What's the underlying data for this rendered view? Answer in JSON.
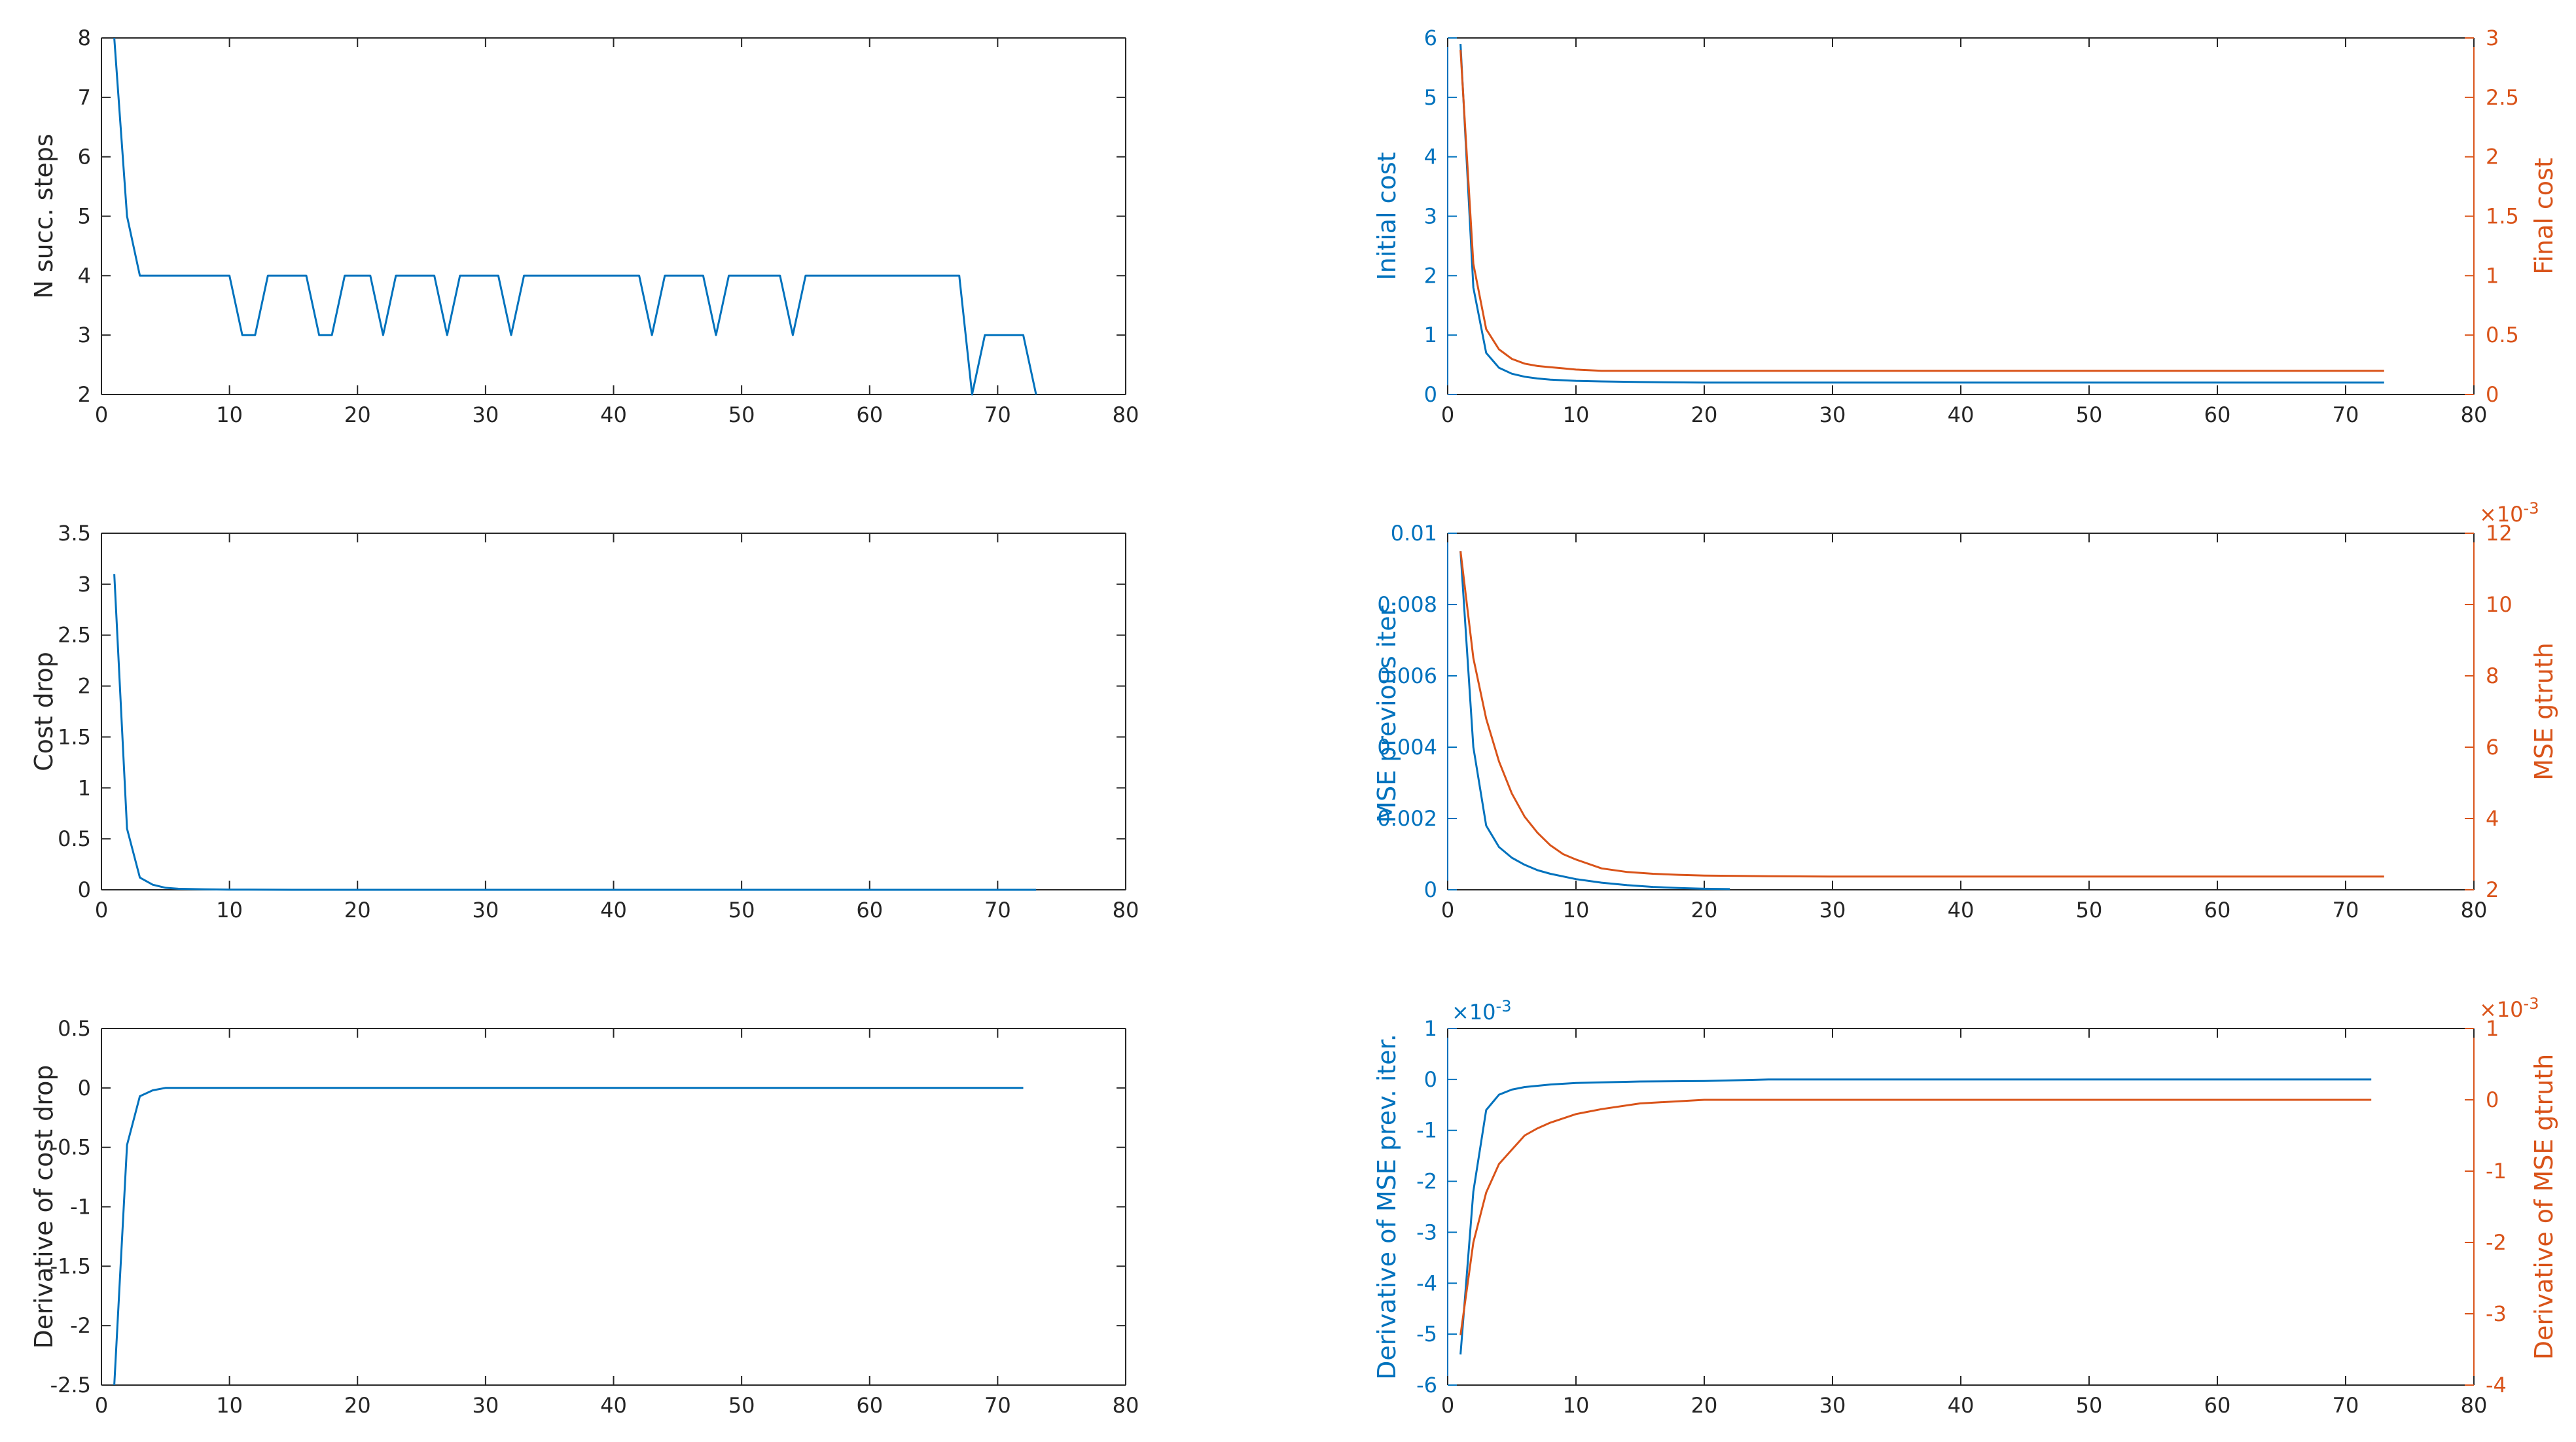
{
  "colors": {
    "blue": "#0072BD",
    "orange": "#D95319",
    "axis": "#262626",
    "grid_tick": "#262626"
  },
  "chart_data": [
    {
      "id": "n-succ-steps",
      "type": "line",
      "xlim": [
        0,
        80
      ],
      "xticks": [
        0,
        10,
        20,
        30,
        40,
        50,
        60,
        70,
        80
      ],
      "left_axis": {
        "label": "N succ. steps",
        "ylim": [
          2,
          8
        ],
        "ticks": [
          2,
          3,
          4,
          5,
          6,
          7,
          8
        ],
        "tick_labels": [
          "2",
          "3",
          "4",
          "5",
          "6",
          "7",
          "8"
        ]
      },
      "series": [
        {
          "axis": "left",
          "color_key": "blue",
          "x": [
            1,
            2,
            3,
            4,
            5,
            6,
            7,
            8,
            9,
            10,
            11,
            12,
            13,
            14,
            15,
            16,
            17,
            18,
            19,
            20,
            21,
            22,
            23,
            24,
            25,
            26,
            27,
            28,
            29,
            30,
            31,
            32,
            33,
            34,
            35,
            36,
            37,
            38,
            39,
            40,
            41,
            42,
            43,
            44,
            45,
            46,
            47,
            48,
            49,
            50,
            51,
            52,
            53,
            54,
            55,
            56,
            57,
            58,
            59,
            60,
            61,
            62,
            63,
            64,
            65,
            66,
            67,
            68,
            69,
            70,
            71,
            72,
            73
          ],
          "y": [
            8,
            5,
            4,
            4,
            4,
            4,
            4,
            4,
            4,
            4,
            3,
            3,
            4,
            4,
            4,
            4,
            3,
            3,
            4,
            4,
            4,
            3,
            4,
            4,
            4,
            4,
            3,
            4,
            4,
            4,
            4,
            3,
            4,
            4,
            4,
            4,
            4,
            4,
            4,
            4,
            4,
            4,
            3,
            4,
            4,
            4,
            4,
            3,
            4,
            4,
            4,
            4,
            4,
            3,
            4,
            4,
            4,
            4,
            4,
            4,
            4,
            4,
            4,
            4,
            4,
            4,
            4,
            2,
            3,
            3,
            3,
            3,
            2
          ]
        }
      ]
    },
    {
      "id": "cost-drop",
      "type": "line",
      "xlim": [
        0,
        80
      ],
      "xticks": [
        0,
        10,
        20,
        30,
        40,
        50,
        60,
        70,
        80
      ],
      "left_axis": {
        "label": "Cost drop",
        "ylim": [
          0,
          3.5
        ],
        "ticks": [
          0,
          0.5,
          1,
          1.5,
          2,
          2.5,
          3,
          3.5
        ],
        "tick_labels": [
          "0",
          "0.5",
          "1",
          "1.5",
          "2",
          "2.5",
          "3",
          "3.5"
        ]
      },
      "series": [
        {
          "axis": "left",
          "color_key": "blue",
          "x": [
            1,
            2,
            3,
            4,
            5,
            6,
            8,
            10,
            15,
            20,
            30,
            40,
            50,
            60,
            70,
            73
          ],
          "y": [
            3.1,
            0.6,
            0.12,
            0.05,
            0.02,
            0.01,
            0.005,
            0.002,
            0,
            0,
            0,
            0,
            0,
            0,
            0,
            0
          ]
        }
      ]
    },
    {
      "id": "derivative-cost-drop",
      "type": "line",
      "xlim": [
        0,
        80
      ],
      "xticks": [
        0,
        10,
        20,
        30,
        40,
        50,
        60,
        70,
        80
      ],
      "left_axis": {
        "label": "Derivative of cost drop",
        "ylim": [
          -2.5,
          0.5
        ],
        "ticks": [
          -2.5,
          -2,
          -1.5,
          -1,
          -0.5,
          0,
          0.5
        ],
        "tick_labels": [
          "-2.5",
          "-2",
          "-1.5",
          "-1",
          "-0.5",
          "0",
          "0.5"
        ]
      },
      "series": [
        {
          "axis": "left",
          "color_key": "blue",
          "x": [
            1,
            2,
            3,
            4,
            5,
            6,
            10,
            20,
            30,
            40,
            50,
            60,
            70,
            72
          ],
          "y": [
            -2.5,
            -0.48,
            -0.07,
            -0.02,
            0,
            0,
            0,
            0,
            0,
            0,
            0,
            0,
            0,
            0
          ]
        }
      ]
    },
    {
      "id": "initial-final-cost",
      "type": "line",
      "xlim": [
        0,
        80
      ],
      "xticks": [
        0,
        10,
        20,
        30,
        40,
        50,
        60,
        70,
        80
      ],
      "left_axis": {
        "label": "Initial cost",
        "ylim": [
          0,
          6
        ],
        "ticks": [
          0,
          1,
          2,
          3,
          4,
          5,
          6
        ],
        "tick_labels": [
          "0",
          "1",
          "2",
          "3",
          "4",
          "5",
          "6"
        ]
      },
      "right_axis": {
        "label": "Final cost",
        "ylim": [
          0,
          3
        ],
        "ticks": [
          0,
          0.5,
          1,
          1.5,
          2,
          2.5,
          3
        ],
        "tick_labels": [
          "0",
          "0.5",
          "1",
          "1.5",
          "2",
          "2.5",
          "3"
        ]
      },
      "series": [
        {
          "axis": "left",
          "color_key": "blue",
          "x": [
            1,
            2,
            3,
            4,
            5,
            6,
            7,
            8,
            10,
            12,
            15,
            20,
            30,
            40,
            50,
            60,
            70,
            73
          ],
          "y": [
            5.9,
            1.8,
            0.7,
            0.45,
            0.35,
            0.3,
            0.27,
            0.25,
            0.23,
            0.22,
            0.21,
            0.2,
            0.2,
            0.2,
            0.2,
            0.2,
            0.2,
            0.2
          ]
        },
        {
          "axis": "right",
          "color_key": "orange",
          "x": [
            1,
            2,
            3,
            4,
            5,
            6,
            7,
            8,
            9,
            10,
            12,
            15,
            20,
            30,
            40,
            50,
            60,
            70,
            73
          ],
          "y": [
            2.9,
            1.1,
            0.55,
            0.38,
            0.3,
            0.26,
            0.24,
            0.23,
            0.22,
            0.21,
            0.2,
            0.2,
            0.2,
            0.2,
            0.2,
            0.2,
            0.2,
            0.2,
            0.2
          ]
        }
      ]
    },
    {
      "id": "mse-previous-gtruth",
      "type": "line",
      "xlim": [
        0,
        80
      ],
      "xticks": [
        0,
        10,
        20,
        30,
        40,
        50,
        60,
        70,
        80
      ],
      "left_axis": {
        "label": "MSE previous iter.",
        "ylim": [
          0,
          0.01
        ],
        "ticks": [
          0,
          0.002,
          0.004,
          0.006,
          0.008,
          0.01
        ],
        "tick_labels": [
          "0",
          "0.002",
          "0.004",
          "0.006",
          "0.008",
          "0.01"
        ]
      },
      "right_axis": {
        "label": "MSE gtruth",
        "ylim": [
          2,
          12
        ],
        "ticks": [
          2,
          4,
          6,
          8,
          10,
          12
        ],
        "tick_labels": [
          "2",
          "4",
          "6",
          "8",
          "10",
          "12"
        ],
        "exponent": "×10",
        "exponent_power": "-3"
      },
      "series": [
        {
          "axis": "left",
          "color_key": "blue",
          "x": [
            1,
            2,
            3,
            4,
            5,
            6,
            7,
            8,
            10,
            12,
            14,
            16,
            18,
            20,
            22
          ],
          "y": [
            0.0095,
            0.004,
            0.0018,
            0.0012,
            0.0009,
            0.0007,
            0.00055,
            0.00045,
            0.0003,
            0.0002,
            0.00013,
            8e-05,
            5e-05,
            3e-05,
            2e-05
          ]
        },
        {
          "axis": "right",
          "color_key": "orange",
          "x": [
            1,
            2,
            3,
            4,
            5,
            6,
            7,
            8,
            9,
            10,
            12,
            14,
            16,
            18,
            20,
            25,
            30,
            40,
            50,
            60,
            70,
            73
          ],
          "y": [
            11.5,
            8.5,
            6.8,
            5.6,
            4.7,
            4.05,
            3.6,
            3.25,
            3.0,
            2.85,
            2.6,
            2.5,
            2.45,
            2.42,
            2.4,
            2.38,
            2.37,
            2.37,
            2.37,
            2.37,
            2.37,
            2.37
          ]
        }
      ]
    },
    {
      "id": "derivative-mse",
      "type": "line",
      "xlim": [
        0,
        80
      ],
      "xticks": [
        0,
        10,
        20,
        30,
        40,
        50,
        60,
        70,
        80
      ],
      "left_axis": {
        "label": "Derivative of MSE prev. iter.",
        "ylim": [
          -6,
          1
        ],
        "ticks": [
          -6,
          -5,
          -4,
          -3,
          -2,
          -1,
          0,
          1
        ],
        "tick_labels": [
          "-6",
          "-5",
          "-4",
          "-3",
          "-2",
          "-1",
          "0",
          "1"
        ],
        "exponent": "×10",
        "exponent_power": "-3"
      },
      "right_axis": {
        "label": "Derivative of MSE gtruth",
        "ylim": [
          -4,
          1
        ],
        "ticks": [
          -4,
          -3,
          -2,
          -1,
          0,
          1
        ],
        "tick_labels": [
          "-4",
          "-3",
          "-2",
          "-1",
          "0",
          "1"
        ],
        "exponent": "×10",
        "exponent_power": "-3"
      },
      "series": [
        {
          "axis": "left",
          "color_key": "blue",
          "x": [
            1,
            2,
            3,
            4,
            5,
            6,
            8,
            10,
            15,
            20,
            25,
            30,
            40,
            50,
            60,
            70,
            72
          ],
          "y": [
            -5.4,
            -2.2,
            -0.6,
            -0.3,
            -0.2,
            -0.15,
            -0.1,
            -0.07,
            -0.04,
            -0.03,
            0,
            0,
            0,
            0,
            0,
            0,
            0
          ]
        },
        {
          "axis": "right",
          "color_key": "orange",
          "x": [
            1,
            2,
            3,
            4,
            5,
            6,
            7,
            8,
            10,
            12,
            15,
            20,
            25,
            30,
            40,
            50,
            60,
            70,
            72
          ],
          "y": [
            -3.3,
            -2.0,
            -1.3,
            -0.9,
            -0.7,
            -0.5,
            -0.4,
            -0.32,
            -0.2,
            -0.13,
            -0.05,
            0,
            0,
            0,
            0,
            0,
            0,
            0,
            0
          ]
        }
      ]
    }
  ]
}
